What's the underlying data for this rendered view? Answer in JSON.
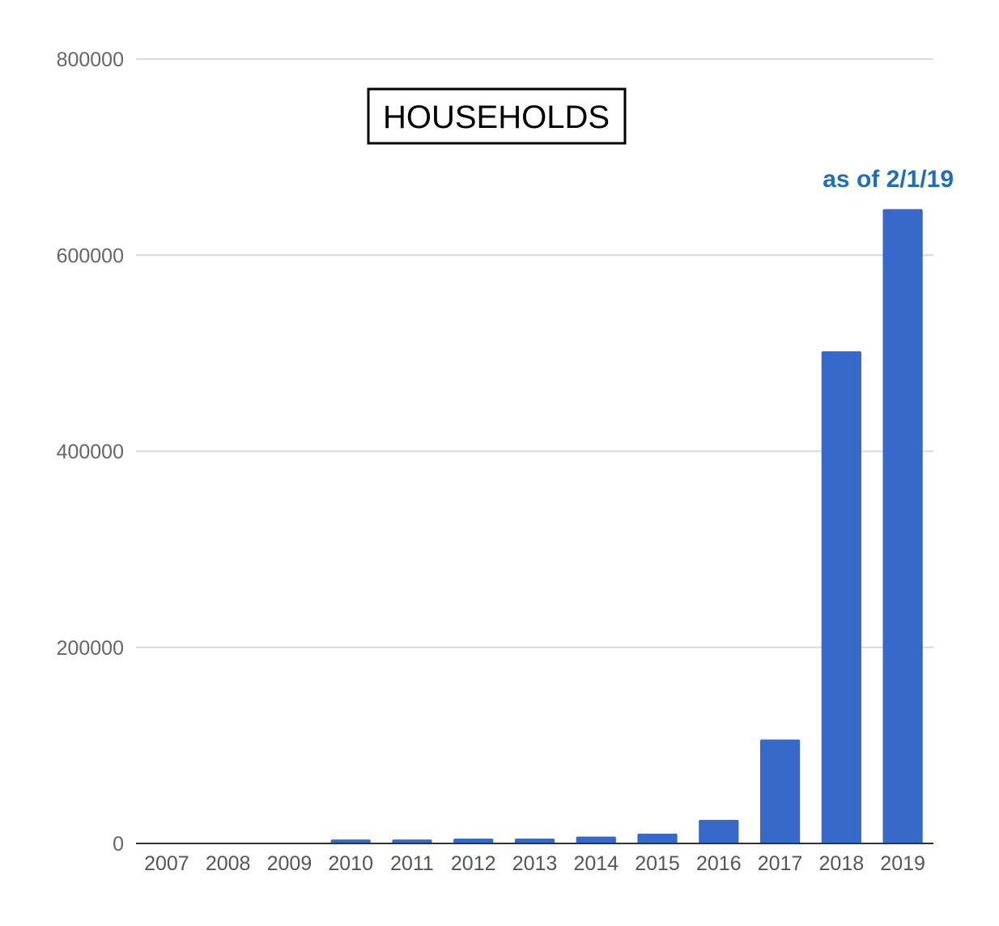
{
  "chart_data": {
    "type": "bar",
    "title": "HOUSEHOLDS",
    "xlabel": "",
    "ylabel": "",
    "categories": [
      "2007",
      "2008",
      "2009",
      "2010",
      "2011",
      "2012",
      "2013",
      "2014",
      "2015",
      "2016",
      "2017",
      "2018",
      "2019"
    ],
    "values": [
      0,
      0,
      0,
      4000,
      4000,
      5000,
      5000,
      7000,
      10000,
      24000,
      106000,
      502000,
      647000
    ],
    "ylim": [
      0,
      800000
    ],
    "yticks": [
      "0",
      "200000",
      "400000",
      "600000",
      "800000"
    ],
    "grid": true,
    "legend": "none",
    "annotation": "as of 2/1/19",
    "colors": {
      "bar": "#3669c9",
      "annotation": "#1f6fb8"
    }
  }
}
